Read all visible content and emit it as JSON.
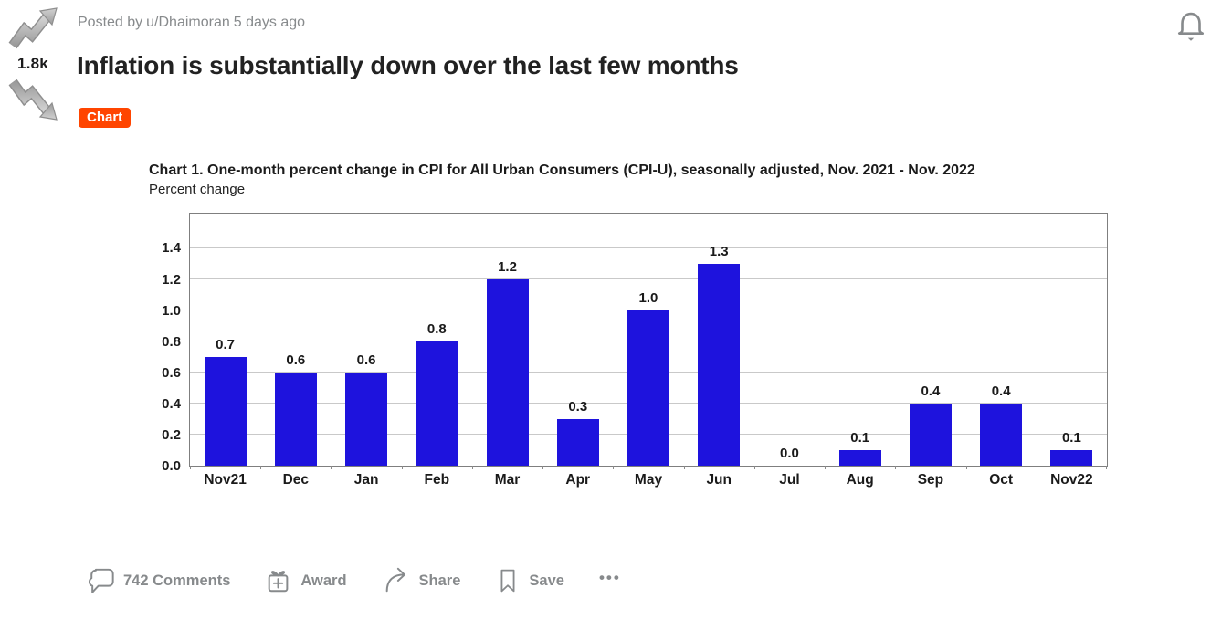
{
  "post": {
    "votes": "1.8k",
    "byline_prefix": "Posted by",
    "author": "u/Dhaimoran",
    "time": "5 days ago",
    "title": "Inflation is substantially down over the last few months",
    "flair": "Chart",
    "flair_color": "#FF4500"
  },
  "icons": {
    "upvote": "trend-up-arrow",
    "downvote": "trend-down-arrow",
    "notification": "bell",
    "comments": "speech-bubble",
    "award": "gift-box-plus",
    "share": "curved-arrow",
    "save": "bookmark",
    "more": "ellipsis"
  },
  "chart_data": {
    "type": "bar",
    "title": "Chart 1. One-month percent change in CPI for All Urban Consumers (CPI-U), seasonally adjusted, Nov. 2021 - Nov. 2022",
    "ylabel": "Percent change",
    "categories": [
      "Nov21",
      "Dec",
      "Jan",
      "Feb",
      "Mar",
      "Apr",
      "May",
      "Jun",
      "Jul",
      "Aug",
      "Sep",
      "Oct",
      "Nov22"
    ],
    "values": [
      0.7,
      0.6,
      0.6,
      0.8,
      1.2,
      0.3,
      1.0,
      1.3,
      0.0,
      0.1,
      0.4,
      0.4,
      0.1
    ],
    "yticks": [
      0.0,
      0.2,
      0.4,
      0.6,
      0.8,
      1.0,
      1.2,
      1.4
    ],
    "ylim": [
      0,
      1.62
    ],
    "grid": true,
    "data_labels": true,
    "legend": "none",
    "bar_color": "#1e13dd",
    "grid_color": "#c9c9c9",
    "frame_color": "#7f7f7f"
  },
  "footer": {
    "comments": "742 Comments",
    "award": "Award",
    "share": "Share",
    "save": "Save",
    "more": "•••"
  }
}
